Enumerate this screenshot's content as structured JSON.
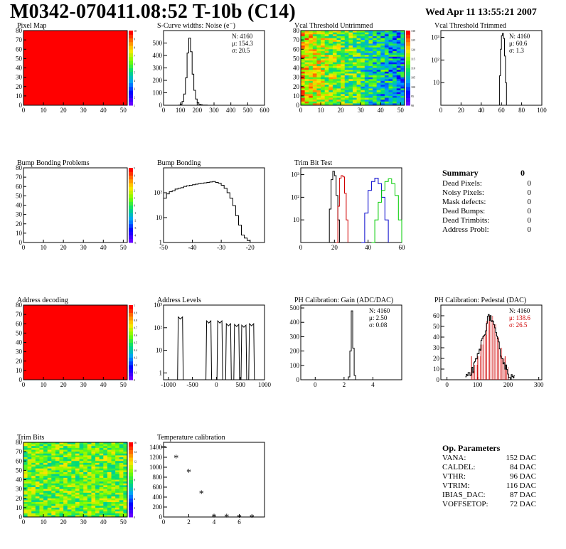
{
  "header": {
    "title": "M0342-070411.08:52 T-10b (C14)",
    "date": "Wed Apr 11 13:55:21 2007"
  },
  "summary": {
    "title": "Summary",
    "total": "0",
    "rows": [
      {
        "label": "Dead Pixels:",
        "value": "0"
      },
      {
        "label": "Noisy Pixels:",
        "value": "0"
      },
      {
        "label": "Mask defects:",
        "value": "0"
      },
      {
        "label": "Dead Bumps:",
        "value": "0"
      },
      {
        "label": "Dead Trimbits:",
        "value": "0"
      },
      {
        "label": "Address Probl:",
        "value": "0"
      }
    ]
  },
  "op_params": {
    "title": "Op. Parameters",
    "rows": [
      {
        "label": "VANA:",
        "value": "152 DAC"
      },
      {
        "label": "CALDEL:",
        "value": "84 DAC"
      },
      {
        "label": "VTHR:",
        "value": "96 DAC"
      },
      {
        "label": "VTRIM:",
        "value": "116 DAC"
      },
      {
        "label": "IBIAS_DAC:",
        "value": "87 DAC"
      },
      {
        "label": "VOFFSETOP:",
        "value": "72 DAC"
      }
    ]
  },
  "chart_data": [
    {
      "id": "pixel-map",
      "type": "heatmap",
      "title": "Pixel Map",
      "xlim": [
        0,
        52
      ],
      "ylim": [
        0,
        80
      ],
      "xticks": [
        0,
        10,
        20,
        30,
        40,
        50
      ],
      "yticks": [
        0,
        10,
        20,
        30,
        40,
        50,
        60,
        70,
        80
      ],
      "fill": "uniform-max",
      "zticks": [
        "1",
        "2",
        "3",
        "4",
        "5",
        "6",
        "7",
        "8",
        "9",
        "10"
      ],
      "colors": {
        "fill": "#ff0000"
      }
    },
    {
      "id": "scurve",
      "type": "line",
      "title": "S-Curve widths: Noise (e⁻)",
      "xlim": [
        0,
        600
      ],
      "ylim": [
        0,
        600
      ],
      "xticks": [
        0,
        100,
        200,
        300,
        400,
        500,
        600
      ],
      "yticks": [
        0,
        100,
        200,
        300,
        400,
        500
      ],
      "stats": [
        {
          "label": "N:",
          "value": "4160"
        },
        {
          "label": "μ:",
          "value": "154.3"
        },
        {
          "label": "σ:",
          "value": "20.5"
        }
      ],
      "x": [
        80,
        90,
        100,
        110,
        120,
        130,
        140,
        150,
        160,
        170,
        180,
        190,
        200,
        210,
        220,
        230,
        240,
        250,
        260,
        270,
        280
      ],
      "y": [
        0,
        2,
        8,
        30,
        90,
        220,
        420,
        540,
        430,
        250,
        120,
        50,
        20,
        8,
        4,
        2,
        1,
        1,
        0,
        0,
        0
      ]
    },
    {
      "id": "vcal-untrimmed",
      "type": "heatmap",
      "title": "Vcal Threshold Untrimmed",
      "xlim": [
        0,
        52
      ],
      "ylim": [
        0,
        80
      ],
      "xticks": [
        0,
        10,
        20,
        30,
        40,
        50
      ],
      "yticks": [
        0,
        10,
        20,
        30,
        40,
        50,
        60,
        70,
        80
      ],
      "fill": "gradient-x",
      "zticks": [
        "90",
        "95",
        "100",
        "105",
        "110",
        "115",
        "120",
        "125",
        "130"
      ]
    },
    {
      "id": "vcal-trimmed",
      "type": "line",
      "title": "Vcal Threshold Trimmed",
      "log": true,
      "xlim": [
        0,
        100
      ],
      "ylim": [
        1,
        2000
      ],
      "xticks": [
        0,
        20,
        40,
        60,
        80,
        100
      ],
      "yticks": [
        10,
        100,
        1000
      ],
      "ylabels": [
        "10",
        "10²",
        "10³"
      ],
      "stats": [
        {
          "label": "N:",
          "value": "4160"
        },
        {
          "label": "μ:",
          "value": "60.6"
        },
        {
          "label": "σ:",
          "value": "1.3"
        }
      ],
      "x": [
        56,
        57,
        58,
        59,
        60,
        61,
        62,
        63,
        64,
        65,
        66
      ],
      "y": [
        1,
        1,
        20,
        300,
        1200,
        1500,
        900,
        150,
        10,
        1,
        1
      ]
    },
    {
      "id": "bump-problems",
      "type": "heatmap",
      "title": "Bump Bonding Problems",
      "xlim": [
        0,
        52
      ],
      "ylim": [
        0,
        80
      ],
      "xticks": [
        0,
        10,
        20,
        30,
        40,
        50
      ],
      "yticks": [
        0,
        10,
        20,
        30,
        40,
        50,
        60,
        70,
        80
      ],
      "fill": "empty",
      "zticks": [
        "-5",
        "-4",
        "-3",
        "-2",
        "-1",
        "0",
        "1",
        "2",
        "3",
        "4",
        "5"
      ]
    },
    {
      "id": "bump-bonding",
      "type": "line",
      "title": "Bump Bonding",
      "log": true,
      "xlim": [
        -50,
        -15
      ],
      "ylim": [
        1,
        1000
      ],
      "xticks": [
        -50,
        -40,
        -30,
        -20
      ],
      "yticks": [
        1,
        10,
        100
      ],
      "ylabels": [
        "1",
        "10",
        "10²"
      ],
      "x": [
        -50,
        -49,
        -48,
        -47,
        -46,
        -45,
        -44,
        -43,
        -42,
        -41,
        -40,
        -39,
        -38,
        -37,
        -36,
        -35,
        -34,
        -33,
        -32,
        -31,
        -30,
        -29,
        -28,
        -27,
        -26,
        -25,
        -24,
        -23,
        -22,
        -21,
        -20
      ],
      "y": [
        60,
        90,
        110,
        120,
        140,
        150,
        160,
        180,
        190,
        200,
        210,
        220,
        230,
        240,
        250,
        260,
        270,
        280,
        260,
        240,
        200,
        150,
        100,
        60,
        30,
        12,
        5,
        2,
        1.5,
        1.2,
        1
      ]
    },
    {
      "id": "trim-bit-test",
      "type": "line",
      "title": "Trim Bit Test",
      "log": true,
      "xlim": [
        0,
        60
      ],
      "ylim": [
        1,
        2000
      ],
      "xticks": [
        0,
        20,
        40,
        60
      ],
      "yticks": [
        10,
        100,
        1000
      ],
      "ylabels": [
        "10",
        "10²",
        "10³"
      ],
      "series": [
        {
          "color": "#000000",
          "x": [
            16,
            17,
            18,
            19,
            20,
            21,
            22,
            23
          ],
          "y": [
            1,
            30,
            600,
            1400,
            900,
            120,
            10,
            1
          ]
        },
        {
          "color": "#d00000",
          "x": [
            21,
            22,
            23,
            24,
            25,
            26,
            27,
            28
          ],
          "y": [
            1,
            40,
            700,
            900,
            800,
            150,
            10,
            1
          ]
        },
        {
          "color": "#0000cc",
          "x": [
            36,
            38,
            40,
            42,
            44,
            46,
            48,
            50,
            52
          ],
          "y": [
            1,
            20,
            200,
            500,
            700,
            400,
            100,
            10,
            1
          ]
        },
        {
          "color": "#00cc00",
          "x": [
            42,
            44,
            46,
            48,
            50,
            52,
            54,
            56,
            58,
            60
          ],
          "y": [
            1,
            10,
            60,
            200,
            500,
            650,
            400,
            120,
            10,
            1
          ]
        }
      ]
    },
    {
      "id": "address-decoding",
      "type": "heatmap",
      "title": "Address decoding",
      "xlim": [
        0,
        52
      ],
      "ylim": [
        0,
        80
      ],
      "xticks": [
        0,
        10,
        20,
        30,
        40,
        50
      ],
      "yticks": [
        0,
        10,
        20,
        30,
        40,
        50,
        60,
        70,
        80
      ],
      "fill": "uniform-max",
      "zticks": [
        "0",
        "0.1",
        "0.2",
        "0.3",
        "0.4",
        "0.5",
        "0.6",
        "0.7",
        "0.8",
        "0.9",
        "1"
      ],
      "colors": {
        "fill": "#ff0000"
      }
    },
    {
      "id": "address-levels",
      "type": "line",
      "title": "Address Levels",
      "log": true,
      "xlim": [
        -1100,
        1000
      ],
      "ylim": [
        0.5,
        1000
      ],
      "xticks": [
        -1000,
        -500,
        0,
        500,
        1000
      ],
      "yticks": [
        1,
        10,
        100,
        1000
      ],
      "ylabels": [
        "1",
        "10",
        "10²",
        "10³"
      ],
      "peaks": [
        {
          "x": -720,
          "h": 300
        },
        {
          "x": -130,
          "h": 200
        },
        {
          "x": 100,
          "h": 200
        },
        {
          "x": 280,
          "h": 150
        },
        {
          "x": 450,
          "h": 140
        },
        {
          "x": 600,
          "h": 130
        },
        {
          "x": 760,
          "h": 150
        }
      ]
    },
    {
      "id": "ph-gain",
      "type": "line",
      "title": "PH Calibration: Gain (ADC/DAC)",
      "xlim": [
        -1,
        6
      ],
      "ylim": [
        0,
        520
      ],
      "xticks": [
        0,
        2,
        4
      ],
      "yticks": [
        0,
        100,
        200,
        300,
        400,
        500
      ],
      "stats": [
        {
          "label": "N:",
          "value": "4160"
        },
        {
          "label": "μ:",
          "value": "2.50"
        },
        {
          "label": "σ:",
          "value": "0.08"
        }
      ],
      "x": [
        2.2,
        2.3,
        2.4,
        2.5,
        2.6,
        2.7,
        2.8
      ],
      "y": [
        0,
        20,
        200,
        480,
        220,
        30,
        0
      ]
    },
    {
      "id": "ph-pedestal",
      "type": "line",
      "title": "PH Calibration: Pedestal (DAC)",
      "xlim": [
        -20,
        310
      ],
      "ylim": [
        0,
        70
      ],
      "xticks": [
        0,
        100,
        200,
        300
      ],
      "yticks": [
        0,
        10,
        20,
        30,
        40,
        50,
        60
      ],
      "stats": [
        {
          "label": "N:",
          "value": "4160",
          "color": "#000000"
        },
        {
          "label": "μ:",
          "value": "138.6",
          "color": "#d00000"
        },
        {
          "label": "σ:",
          "value": "26.5",
          "color": "#d00000"
        }
      ],
      "x": [
        60,
        70,
        80,
        90,
        100,
        110,
        120,
        130,
        140,
        150,
        160,
        170,
        180,
        190,
        200,
        210,
        220
      ],
      "y": [
        1,
        3,
        8,
        14,
        22,
        33,
        42,
        55,
        60,
        52,
        40,
        30,
        20,
        12,
        6,
        2,
        1
      ],
      "fit": {
        "lo": 80,
        "hi": 190,
        "color": "#d00000"
      }
    },
    {
      "id": "trim-bits",
      "type": "heatmap",
      "title": "Trim Bits",
      "xlim": [
        0,
        52
      ],
      "ylim": [
        0,
        80
      ],
      "xticks": [
        0,
        10,
        20,
        30,
        40,
        50
      ],
      "yticks": [
        0,
        10,
        20,
        30,
        40,
        50,
        60,
        70,
        80
      ],
      "fill": "noise-mid",
      "zticks": [
        "0",
        "2",
        "4",
        "6",
        "8",
        "10",
        "12",
        "14",
        "16"
      ]
    },
    {
      "id": "temp-cal",
      "type": "scatter",
      "title": "Temperature calibration",
      "xlim": [
        0,
        8
      ],
      "ylim": [
        0,
        1500
      ],
      "xticks": [
        0,
        2,
        4,
        6
      ],
      "yticks": [
        0,
        200,
        400,
        600,
        800,
        1000,
        1200,
        1400
      ],
      "x": [
        0,
        1,
        2,
        3,
        4,
        5,
        6,
        7
      ],
      "y": [
        1400,
        1210,
        920,
        490,
        20,
        20,
        15,
        15
      ]
    }
  ]
}
